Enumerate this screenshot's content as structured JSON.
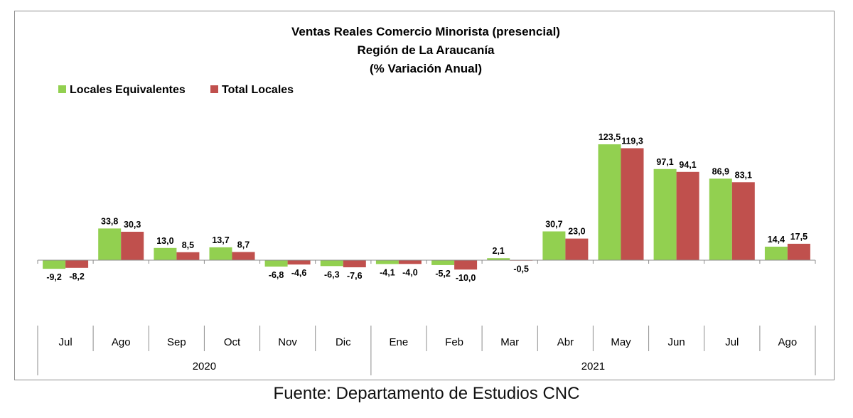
{
  "chart_data": {
    "type": "bar",
    "title_lines": [
      "Ventas Reales Comercio Minorista (presencial)",
      "Región de La Araucanía",
      "(% Variación Anual)"
    ],
    "categories": [
      "Jul",
      "Ago",
      "Sep",
      "Oct",
      "Nov",
      "Dic",
      "Ene",
      "Feb",
      "Mar",
      "Abr",
      "May",
      "Jun",
      "Jul",
      "Ago"
    ],
    "year_groups": [
      {
        "label": "2020",
        "count": 6
      },
      {
        "label": "2021",
        "count": 8
      }
    ],
    "series": [
      {
        "name": "Locales Equivalentes",
        "color": "#92d050",
        "values": [
          -9.2,
          33.8,
          13.0,
          13.7,
          -6.8,
          -6.3,
          -4.1,
          -5.2,
          2.1,
          30.7,
          123.5,
          97.1,
          86.9,
          14.4
        ],
        "labels": [
          "-9,2",
          "33,8",
          "13,0",
          "13,7",
          "-6,8",
          "-6,3",
          "-4,1",
          "-5,2",
          "2,1",
          "30,7",
          "123,5",
          "97,1",
          "86,9",
          "14,4"
        ]
      },
      {
        "name": "Total Locales",
        "color": "#c0504d",
        "values": [
          -8.2,
          30.3,
          8.5,
          8.7,
          -4.6,
          -7.6,
          -4.0,
          -10.0,
          -0.5,
          23.0,
          119.3,
          94.1,
          83.1,
          17.5
        ],
        "labels": [
          "-8,2",
          "30,3",
          "8,5",
          "8,7",
          "-4,6",
          "-7,6",
          "-4,0",
          "-10,0",
          "-0,5",
          "23,0",
          "119,3",
          "94,1",
          "83,1",
          "17,5"
        ]
      }
    ],
    "legend_position": "top-left",
    "grid": false
  },
  "source": "Fuente: Departamento de Estudios CNC"
}
